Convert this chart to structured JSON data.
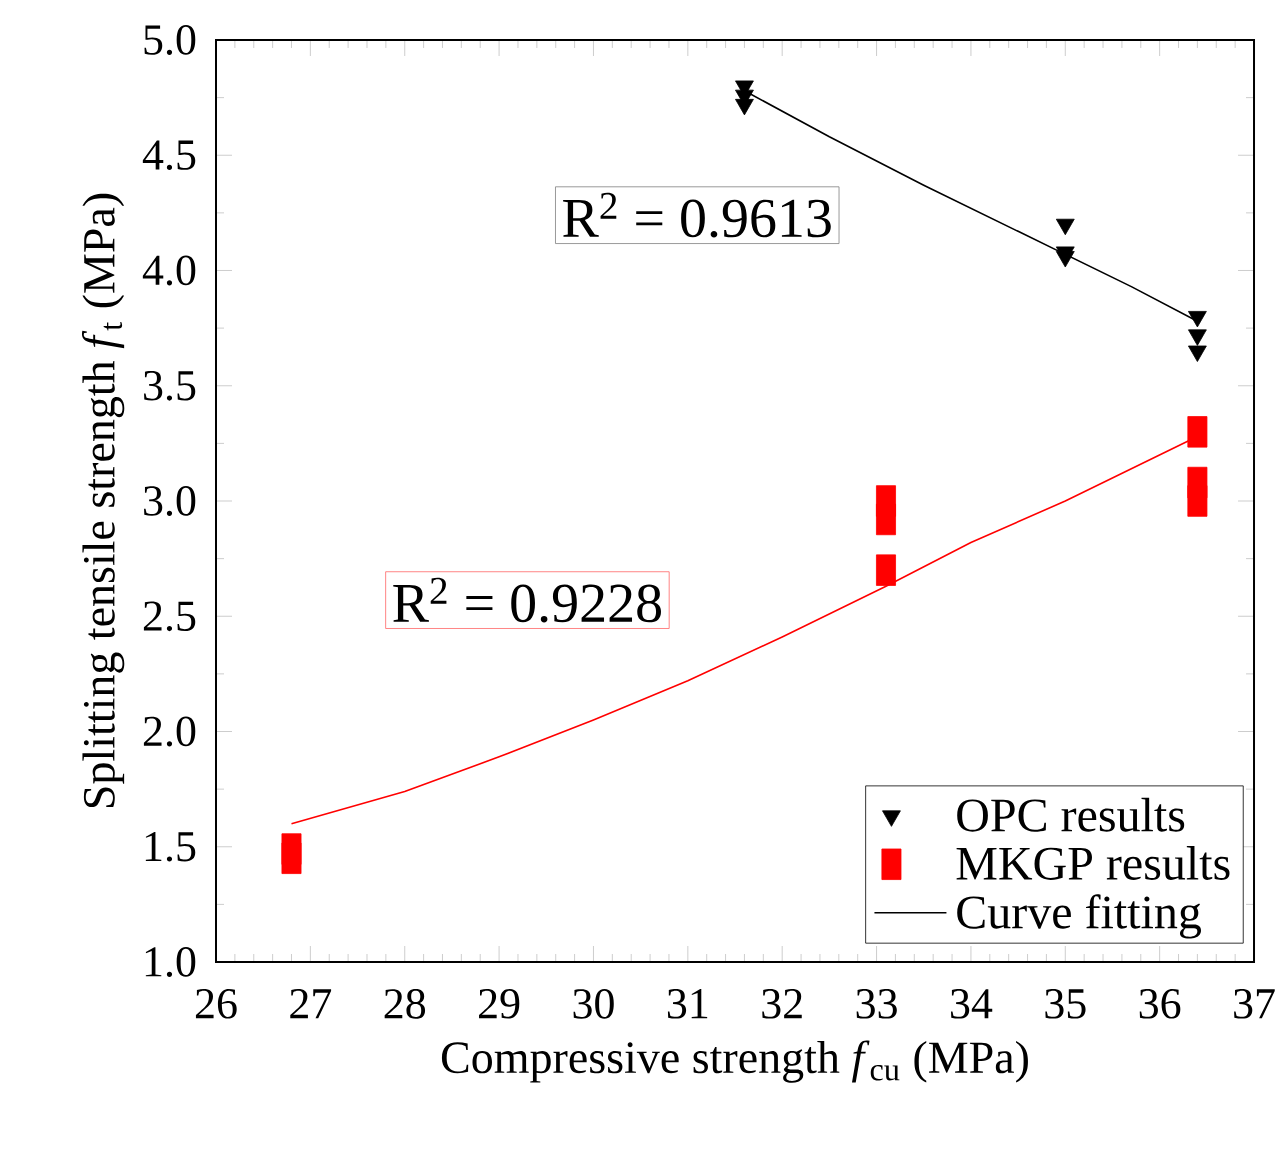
{
  "chart_data": {
    "type": "scatter",
    "xlabel": "Compressive strength *f*$_{cu}$ (MPa)",
    "ylabel": "Splitting tensile strength *f*$_{t}$ (MPa)",
    "xlim": [
      26,
      37
    ],
    "ylim": [
      1.0,
      5.0
    ],
    "xticks": [
      26,
      27,
      28,
      29,
      30,
      31,
      32,
      33,
      34,
      35,
      36,
      37
    ],
    "yticks": [
      {
        "value": 1.0,
        "label": "1.0"
      },
      {
        "value": 1.5,
        "label": "1.5"
      },
      {
        "value": 2.0,
        "label": "2.0"
      },
      {
        "value": 2.5,
        "label": "2.5"
      },
      {
        "value": 3.0,
        "label": "3.0"
      },
      {
        "value": 3.5,
        "label": "3.5"
      },
      {
        "value": 4.0,
        "label": "4.0"
      },
      {
        "value": 4.5,
        "label": "4.5"
      },
      {
        "value": 5.0,
        "label": "5.0"
      }
    ],
    "legend": "bottom right",
    "series": [
      {
        "name": "OPC results",
        "marker": "triangle",
        "color": "#000000",
        "x": [
          31.6,
          31.6,
          31.6,
          35.0,
          35.0,
          35.0,
          36.4,
          36.4,
          36.4
        ],
        "values": [
          4.8,
          4.76,
          4.72,
          4.2,
          4.08,
          4.06,
          3.8,
          3.72,
          3.65
        ]
      },
      {
        "name": "MKGP results",
        "marker": "square",
        "color": "#ff0000",
        "x": [
          26.8,
          26.8,
          33.1,
          33.1,
          33.1,
          36.4,
          36.4,
          36.4
        ],
        "values": [
          1.49,
          1.45,
          3.0,
          2.92,
          2.7,
          3.3,
          3.08,
          3.0
        ]
      },
      {
        "name": "Curve fitting",
        "type": "line",
        "marker": "none",
        "line_style": "solid",
        "color": "#000000",
        "x": [
          31.6,
          32.5,
          33.5,
          34.5,
          35.0,
          35.7,
          36.4
        ],
        "values": [
          4.78,
          4.58,
          4.37,
          4.17,
          4.07,
          3.93,
          3.78
        ]
      },
      {
        "type": "line",
        "marker": "none",
        "line_style": "solid",
        "color": "#ff0000",
        "x": [
          26.8,
          28,
          29,
          30,
          31,
          32,
          33.1,
          34,
          35,
          36.4
        ],
        "values": [
          1.6,
          1.74,
          1.89,
          2.05,
          2.22,
          2.41,
          2.63,
          2.82,
          3.0,
          3.28
        ]
      }
    ],
    "annotations": [
      "R$^{2}$ = 0.9613",
      "R$^{2}$ = 0.9228"
    ]
  }
}
